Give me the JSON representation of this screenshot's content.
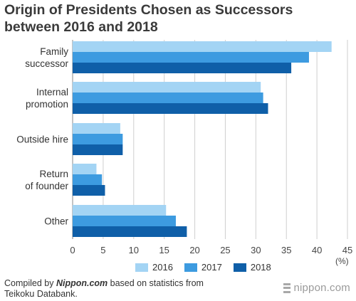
{
  "title_line1": "Origin of Presidents Chosen as Successors",
  "title_line2": "between 2016 and 2018",
  "footer": {
    "pre": "Compiled by ",
    "source": "Nippon.com",
    "post": " based on statistics from",
    "line2": "Teikoku Databank."
  },
  "brand": "nippon.com",
  "colors": {
    "2016": "#a3d4f4",
    "2017": "#3d9be0",
    "2018": "#0f5fa8",
    "grid": "#cfcfcf"
  },
  "chart_data": {
    "type": "bar",
    "orientation": "horizontal",
    "categories": [
      [
        "Family",
        "successor"
      ],
      [
        "Internal",
        "promotion"
      ],
      [
        "Outside hire"
      ],
      [
        "Return",
        "of founder"
      ],
      [
        "Other"
      ]
    ],
    "series": [
      {
        "name": "2016",
        "values": [
          42.4,
          30.8,
          7.8,
          3.9,
          15.3
        ]
      },
      {
        "name": "2017",
        "values": [
          38.7,
          31.2,
          8.2,
          4.8,
          16.9
        ]
      },
      {
        "name": "2018",
        "values": [
          35.8,
          32.0,
          8.2,
          5.3,
          18.7
        ]
      }
    ],
    "x_ticks": [
      0,
      5,
      10,
      15,
      20,
      25,
      30,
      35,
      40,
      45
    ],
    "xlim": [
      0,
      45
    ],
    "unit": "(%)",
    "grid": "vertical",
    "legend_position": "bottom"
  }
}
